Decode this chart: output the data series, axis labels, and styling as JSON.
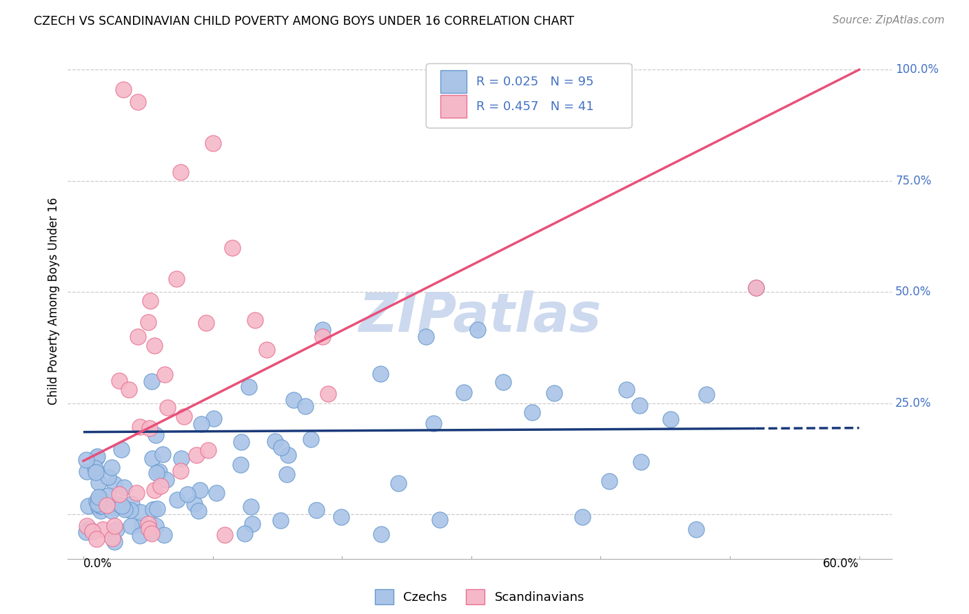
{
  "title": "CZECH VS SCANDINAVIAN CHILD POVERTY AMONG BOYS UNDER 16 CORRELATION CHART",
  "source": "Source: ZipAtlas.com",
  "ylabel": "Child Poverty Among Boys Under 16",
  "yticks": [
    0.0,
    0.25,
    0.5,
    0.75,
    1.0
  ],
  "ytick_labels": [
    "",
    "25.0%",
    "50.0%",
    "75.0%",
    "100.0%"
  ],
  "xlim": [
    0.0,
    0.6
  ],
  "ylim": [
    -0.1,
    1.06
  ],
  "czechs_R": "0.025",
  "czechs_N": "95",
  "scand_R": "0.457",
  "scand_N": "41",
  "czech_color": "#aac4e8",
  "czech_edge_color": "#6699cc",
  "scand_color": "#f5b8c8",
  "scand_edge_color": "#e87090",
  "czech_line_color": "#1a3a7a",
  "scand_line_color": "#e8507a",
  "watermark_color": "#ccd9ee",
  "watermark_text": "ZIPatlas",
  "czech_line_y0": 0.185,
  "czech_line_y1": 0.193,
  "scand_line_y0": 0.12,
  "scand_line_y1": 1.0
}
